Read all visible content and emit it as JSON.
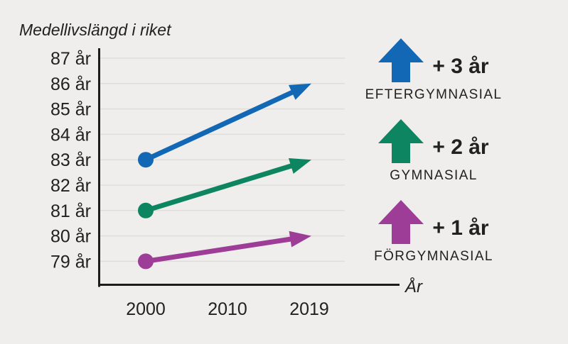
{
  "title": "Medellivslängd i riket",
  "colors": {
    "background": "#efeeec",
    "text": "#222120",
    "axis": "#1d1c1b",
    "grid": "#deddda"
  },
  "chart_data": {
    "type": "line",
    "title": "Medellivslängd i riket",
    "x_axis_label": "År",
    "x_ticks": [
      2000,
      2010,
      2019
    ],
    "x_tick_labels": [
      "2000",
      "2010",
      "2019"
    ],
    "y_ticks": [
      87,
      86,
      85,
      84,
      83,
      82,
      81,
      80,
      79
    ],
    "y_tick_labels": [
      "87 år",
      "86 år",
      "85 år",
      "84 år",
      "83 år",
      "82 år",
      "81 år",
      "80 år",
      "79 år"
    ],
    "ylim": [
      79,
      87
    ],
    "grid": true,
    "legend_position": "right",
    "series": [
      {
        "name": "EFTERGYMNASIAL",
        "delta_label": "+ 3 år",
        "color": "#1268b4",
        "x": [
          2000,
          2019
        ],
        "values": [
          83,
          86
        ]
      },
      {
        "name": "GYMNASIAL",
        "delta_label": "+ 2 år",
        "color": "#0e8561",
        "x": [
          2000,
          2019
        ],
        "values": [
          81,
          83
        ]
      },
      {
        "name": "FÖRGYMNASIAL",
        "delta_label": "+ 1 år",
        "color": "#9d3d97",
        "x": [
          2000,
          2019
        ],
        "values": [
          79,
          80
        ]
      }
    ]
  }
}
